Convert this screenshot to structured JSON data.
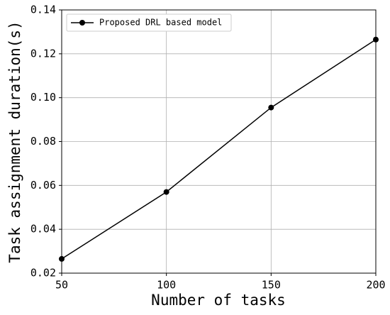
{
  "chart_data": {
    "type": "line",
    "x_label": "Number of tasks",
    "y_label": "Task assignment duration(s)",
    "x": [
      50,
      100,
      150,
      200
    ],
    "series": [
      {
        "name": "Proposed DRL based model",
        "color": "#000000",
        "values": [
          0.0265,
          0.057,
          0.0955,
          0.1265
        ]
      }
    ],
    "xlim": [
      50,
      200
    ],
    "xticks": [
      50,
      100,
      150,
      200
    ],
    "ylim": [
      0.02,
      0.14
    ],
    "yticks": [
      0.02,
      0.04,
      0.06,
      0.08,
      {
        "value": 0.1,
        "label": "0.10"
      },
      0.12,
      0.14
    ],
    "grid": true,
    "legend": "upper left"
  }
}
